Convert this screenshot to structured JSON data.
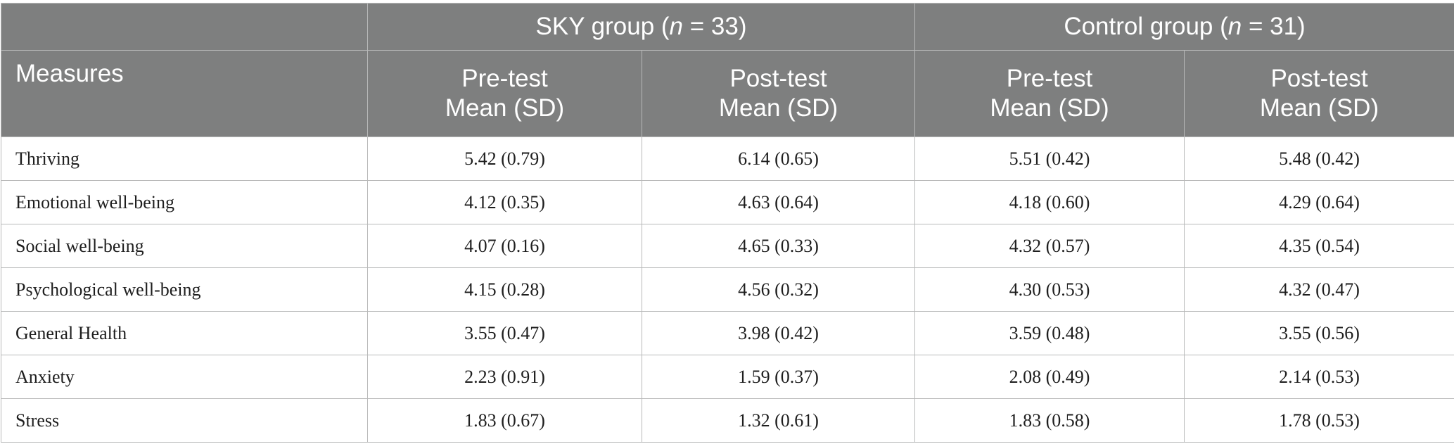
{
  "header": {
    "group_row": {
      "sky_group": {
        "name": "SKY group (",
        "n_symbol": "n",
        "n_rest": " = 33)"
      },
      "control_group": {
        "name": "Control group (",
        "n_symbol": "n",
        "n_rest": " = 31)"
      }
    },
    "measures_label": "Measures",
    "sub_columns": [
      {
        "line1": "Pre-test",
        "line2": "Mean (SD)"
      },
      {
        "line1": "Post-test",
        "line2": "Mean (SD)"
      },
      {
        "line1": "Pre-test",
        "line2": "Mean (SD)"
      },
      {
        "line1": "Post-test",
        "line2": "Mean (SD)"
      }
    ]
  },
  "rows": [
    {
      "measure": "Thriving",
      "values": [
        "5.42 (0.79)",
        "6.14 (0.65)",
        "5.51 (0.42)",
        "5.48 (0.42)"
      ]
    },
    {
      "measure": "Emotional well-being",
      "values": [
        "4.12 (0.35)",
        "4.63 (0.64)",
        "4.18 (0.60)",
        "4.29 (0.64)"
      ]
    },
    {
      "measure": "Social well-being",
      "values": [
        "4.07 (0.16)",
        "4.65 (0.33)",
        "4.32 (0.57)",
        "4.35 (0.54)"
      ]
    },
    {
      "measure": "Psychological well-being",
      "values": [
        "4.15 (0.28)",
        "4.56 (0.32)",
        "4.30 (0.53)",
        "4.32 (0.47)"
      ]
    },
    {
      "measure": "General Health",
      "values": [
        "3.55 (0.47)",
        "3.98 (0.42)",
        "3.59 (0.48)",
        "3.55 (0.56)"
      ]
    },
    {
      "measure": "Anxiety",
      "values": [
        "2.23 (0.91)",
        "1.59 (0.37)",
        "2.08 (0.49)",
        "2.14 (0.53)"
      ]
    },
    {
      "measure": "Stress",
      "values": [
        "1.83 (0.67)",
        "1.32 (0.61)",
        "1.83 (0.58)",
        "1.78 (0.53)"
      ]
    }
  ],
  "colors": {
    "header_bg": "#7e7f7f",
    "header_text": "#ffffff",
    "grid_line": "#b8b9b9",
    "body_text": "#1e1e1e"
  }
}
